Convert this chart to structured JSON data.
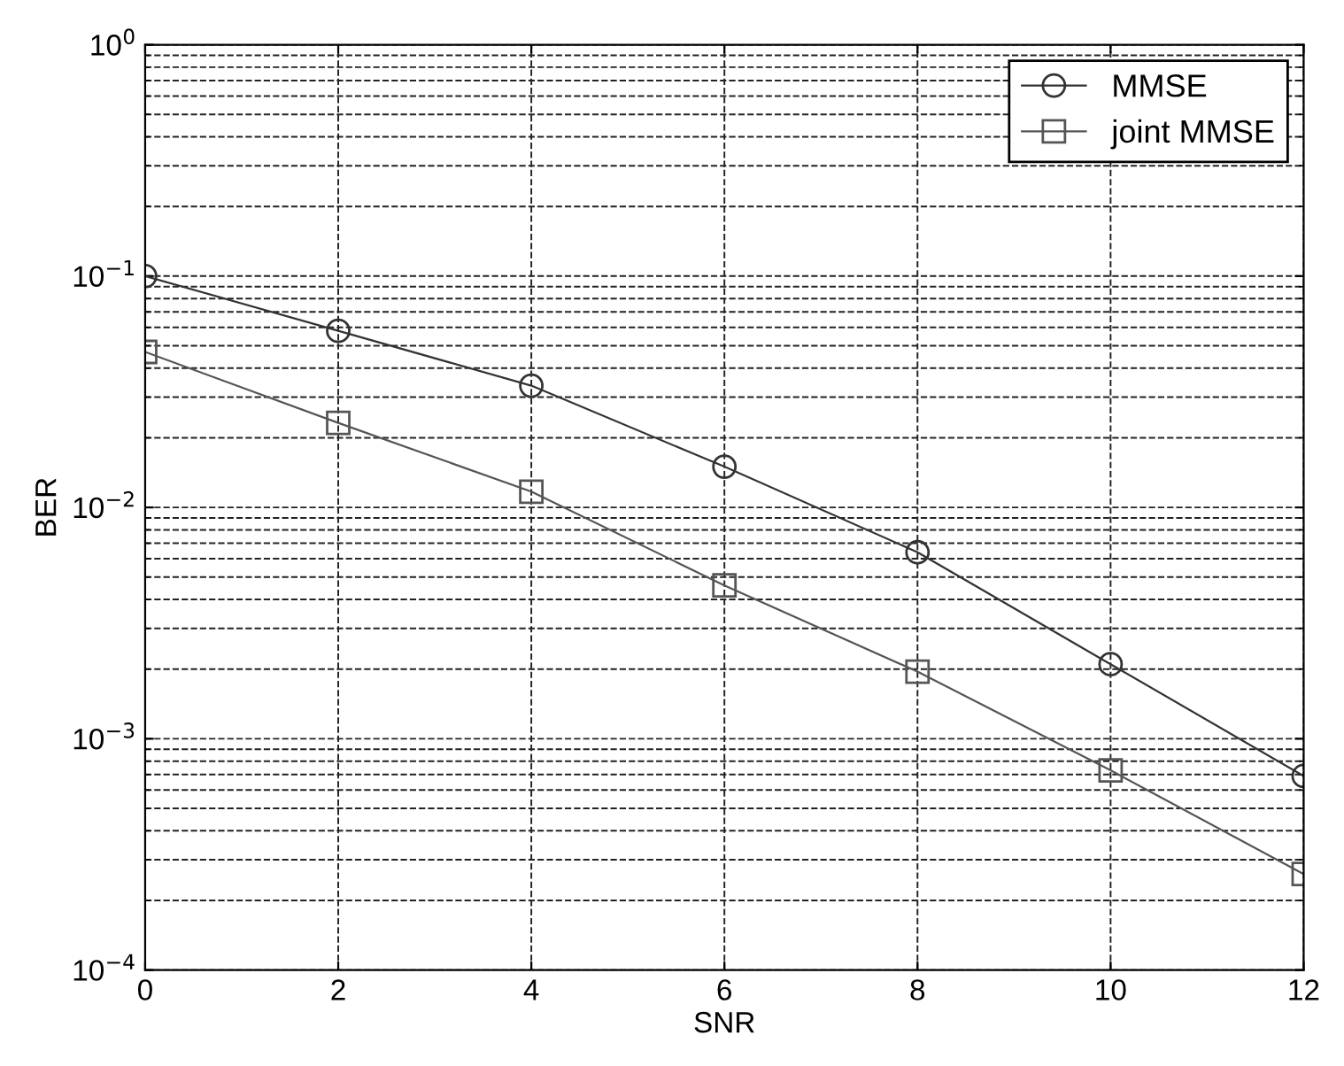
{
  "chart_data": {
    "type": "line",
    "xlabel": "SNR",
    "ylabel": "BER",
    "log": "y",
    "x": [
      0,
      2,
      4,
      6,
      8,
      10,
      12
    ],
    "series": [
      {
        "name": "MMSE",
        "color": "#333333",
        "marker": "circle",
        "values": [
          0.1,
          0.058,
          0.0336,
          0.015,
          0.0064,
          0.0021,
          0.00069
        ]
      },
      {
        "name": "joint MMSE",
        "color": "#555555",
        "marker": "square",
        "values": [
          0.047,
          0.0232,
          0.0117,
          0.0046,
          0.00195,
          0.00073,
          0.00026
        ]
      }
    ],
    "xlim": [
      0,
      12
    ],
    "xticks": [
      0,
      2,
      4,
      6,
      8,
      10,
      12
    ],
    "ylim": [
      0.0001,
      1
    ],
    "yticks": [
      {
        "value": 0.0001,
        "label": "10$^{−4}$"
      },
      {
        "value": 0.001,
        "label": "10$^{−3}$"
      },
      {
        "value": 0.01,
        "label": "10$^{−2}$"
      },
      {
        "value": 0.1,
        "label": "10$^{−1}$"
      },
      {
        "value": 1,
        "label": "10$^{0}$"
      }
    ],
    "grid": true,
    "legend": "top right",
    "line_style": "solid"
  }
}
